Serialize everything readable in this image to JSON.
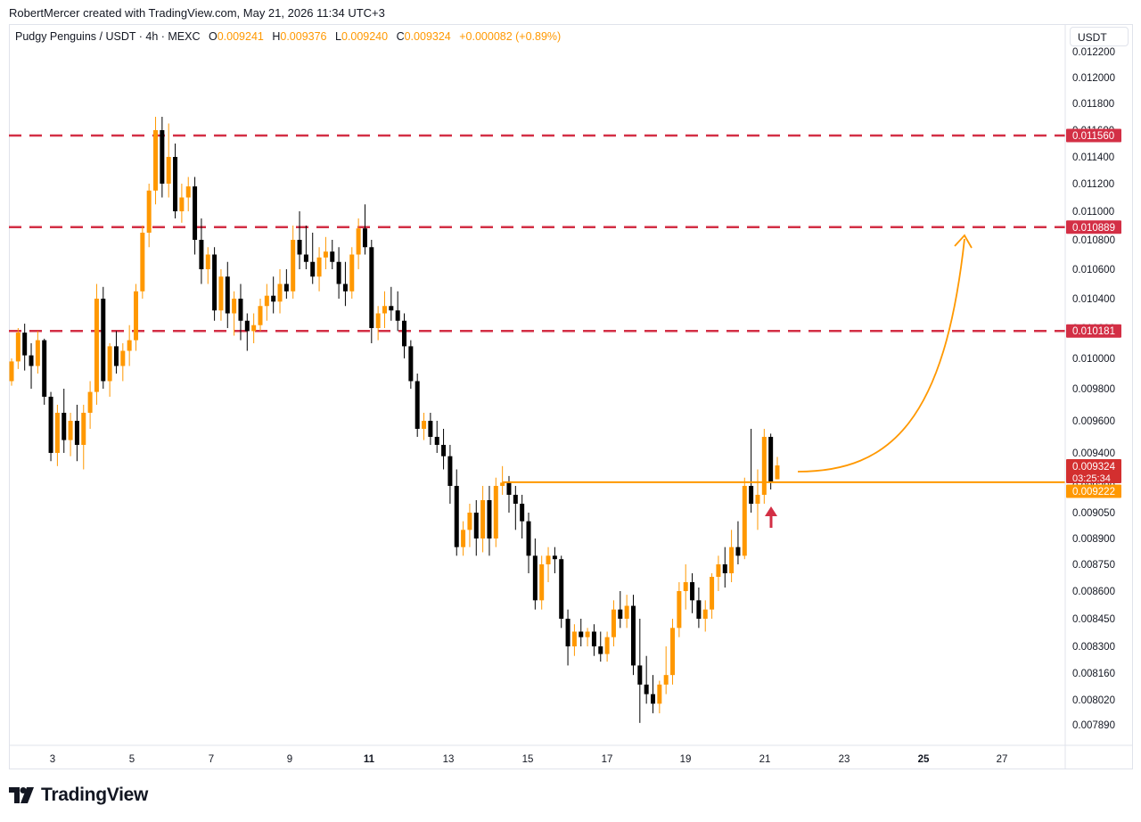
{
  "credit": "RobertMercer created with TradingView.com, May 21, 2026 11:34 UTC+3",
  "legend": {
    "symbol": "Pudgy Penguins / USDT · 4h · MEXC",
    "o_label": "O",
    "o": "0.009241",
    "h_label": "H",
    "h": "0.009376",
    "l_label": "L",
    "l": "0.009240",
    "c_label": "C",
    "c": "0.009324",
    "change": "+0.000082 (+0.89%)"
  },
  "currency": "USDT",
  "brand": "TradingView",
  "colors": {
    "up": "#ff9800",
    "down": "#000000",
    "level": "#d32f45",
    "support": "#ff9800",
    "arrow": "#d32f45"
  },
  "chart_data": {
    "type": "candlestick",
    "y_axis_ticks": [
      "0.012200",
      "0.012000",
      "0.011800",
      "0.011600",
      "0.011400",
      "0.011200",
      "0.011000",
      "0.010800",
      "0.010600",
      "0.010400",
      "0.010200",
      "0.010000",
      "0.009800",
      "0.009600",
      "0.009400",
      "0.009200",
      "0.009050",
      "0.008900",
      "0.008750",
      "0.008600",
      "0.008450",
      "0.008300",
      "0.008160",
      "0.008020",
      "0.007890"
    ],
    "x_axis_ticks": [
      {
        "label": "3",
        "bold": false
      },
      {
        "label": "5",
        "bold": false
      },
      {
        "label": "7",
        "bold": false
      },
      {
        "label": "9",
        "bold": false
      },
      {
        "label": "11",
        "bold": true
      },
      {
        "label": "13",
        "bold": false
      },
      {
        "label": "15",
        "bold": false
      },
      {
        "label": "17",
        "bold": false
      },
      {
        "label": "19",
        "bold": false
      },
      {
        "label": "21",
        "bold": false
      },
      {
        "label": "23",
        "bold": false
      },
      {
        "label": "25",
        "bold": true
      },
      {
        "label": "27",
        "bold": false
      }
    ],
    "resistance_levels": [
      "0.011560",
      "0.010889",
      "0.010181"
    ],
    "support_level": "0.009222",
    "last_price": "0.009324",
    "countdown": "03:25:34",
    "candles": [
      [
        0.00985,
        0.01,
        0.00982,
        0.00998
      ],
      [
        0.00998,
        0.0102,
        0.00993,
        0.01017
      ],
      [
        0.01017,
        0.01023,
        0.00992,
        0.01002
      ],
      [
        0.01002,
        0.0101,
        0.0098,
        0.00995
      ],
      [
        0.00995,
        0.01018,
        0.0099,
        0.01012
      ],
      [
        0.01012,
        0.01013,
        0.0097,
        0.00975
      ],
      [
        0.00975,
        0.00978,
        0.00935,
        0.0094
      ],
      [
        0.0094,
        0.0097,
        0.00932,
        0.00965
      ],
      [
        0.00965,
        0.0098,
        0.0094,
        0.00948
      ],
      [
        0.00948,
        0.00965,
        0.00938,
        0.0096
      ],
      [
        0.0096,
        0.0097,
        0.00935,
        0.00945
      ],
      [
        0.00945,
        0.0097,
        0.0093,
        0.00965
      ],
      [
        0.00965,
        0.00985,
        0.00955,
        0.00978
      ],
      [
        0.00978,
        0.0105,
        0.0097,
        0.0104
      ],
      [
        0.0104,
        0.01048,
        0.0098,
        0.00985
      ],
      [
        0.00985,
        0.0101,
        0.00975,
        0.01008
      ],
      [
        0.01008,
        0.01018,
        0.0099,
        0.00995
      ],
      [
        0.00995,
        0.0101,
        0.00985,
        0.01005
      ],
      [
        0.01005,
        0.01022,
        0.00995,
        0.01012
      ],
      [
        0.01012,
        0.0105,
        0.01005,
        0.01045
      ],
      [
        0.01045,
        0.0109,
        0.0104,
        0.01085
      ],
      [
        0.01085,
        0.0112,
        0.01075,
        0.01115
      ],
      [
        0.01115,
        0.0117,
        0.01105,
        0.0116
      ],
      [
        0.0116,
        0.0117,
        0.0111,
        0.0112
      ],
      [
        0.0112,
        0.01165,
        0.0111,
        0.0114
      ],
      [
        0.0114,
        0.0115,
        0.01095,
        0.011
      ],
      [
        0.011,
        0.0112,
        0.01092,
        0.0111
      ],
      [
        0.0111,
        0.01125,
        0.011,
        0.01118
      ],
      [
        0.01118,
        0.01125,
        0.0107,
        0.0108
      ],
      [
        0.0108,
        0.01095,
        0.0105,
        0.0106
      ],
      [
        0.0106,
        0.01075,
        0.0105,
        0.0107
      ],
      [
        0.0107,
        0.01075,
        0.01025,
        0.01032
      ],
      [
        0.01032,
        0.0106,
        0.01025,
        0.01055
      ],
      [
        0.01055,
        0.01065,
        0.0102,
        0.0103
      ],
      [
        0.0103,
        0.01045,
        0.01015,
        0.0104
      ],
      [
        0.0104,
        0.0105,
        0.01012,
        0.01025
      ],
      [
        0.01025,
        0.0103,
        0.01005,
        0.01018
      ],
      [
        0.01018,
        0.0103,
        0.0101,
        0.01022
      ],
      [
        0.01022,
        0.0104,
        0.01018,
        0.01035
      ],
      [
        0.01035,
        0.0105,
        0.01025,
        0.01042
      ],
      [
        0.01042,
        0.01055,
        0.0103,
        0.01038
      ],
      [
        0.01038,
        0.0106,
        0.0103,
        0.0105
      ],
      [
        0.0105,
        0.0106,
        0.0104,
        0.01045
      ],
      [
        0.01045,
        0.0109,
        0.0104,
        0.0108
      ],
      [
        0.0108,
        0.011,
        0.0106,
        0.0107
      ],
      [
        0.0107,
        0.0109,
        0.0106,
        0.01065
      ],
      [
        0.01065,
        0.01085,
        0.0105,
        0.01055
      ],
      [
        0.01055,
        0.01075,
        0.01045,
        0.01068
      ],
      [
        0.01068,
        0.01082,
        0.0106,
        0.01072
      ],
      [
        0.01072,
        0.0108,
        0.0106,
        0.01065
      ],
      [
        0.01065,
        0.01075,
        0.0104,
        0.0105
      ],
      [
        0.0105,
        0.01065,
        0.01035,
        0.01045
      ],
      [
        0.01045,
        0.01075,
        0.0104,
        0.0107
      ],
      [
        0.0107,
        0.01095,
        0.0106,
        0.01088
      ],
      [
        0.01088,
        0.01105,
        0.0107,
        0.01075
      ],
      [
        0.01075,
        0.0108,
        0.0101,
        0.0102
      ],
      [
        0.0102,
        0.01035,
        0.01012,
        0.0103
      ],
      [
        0.0103,
        0.01045,
        0.0102,
        0.01035
      ],
      [
        0.01035,
        0.01048,
        0.01025,
        0.01032
      ],
      [
        0.01032,
        0.01045,
        0.01018,
        0.01025
      ],
      [
        0.01025,
        0.0103,
        0.01,
        0.01008
      ],
      [
        0.01008,
        0.01012,
        0.0098,
        0.00985
      ],
      [
        0.00985,
        0.0099,
        0.0095,
        0.00955
      ],
      [
        0.00955,
        0.00965,
        0.00948,
        0.0096
      ],
      [
        0.0096,
        0.00965,
        0.00945,
        0.0095
      ],
      [
        0.0095,
        0.0096,
        0.0094,
        0.00945
      ],
      [
        0.00945,
        0.00955,
        0.0093,
        0.00938
      ],
      [
        0.00938,
        0.00945,
        0.0091,
        0.0092
      ],
      [
        0.0092,
        0.0093,
        0.0088,
        0.00885
      ],
      [
        0.00885,
        0.009,
        0.0088,
        0.00895
      ],
      [
        0.00895,
        0.0091,
        0.00885,
        0.00905
      ],
      [
        0.00905,
        0.00912,
        0.0088,
        0.0089
      ],
      [
        0.0089,
        0.0092,
        0.00882,
        0.00912
      ],
      [
        0.00912,
        0.0092,
        0.0088,
        0.0089
      ],
      [
        0.0089,
        0.00925,
        0.00885,
        0.0092
      ],
      [
        0.0092,
        0.00932,
        0.00915,
        0.00922
      ],
      [
        0.00922,
        0.00926,
        0.00905,
        0.00915
      ],
      [
        0.00915,
        0.0092,
        0.00895,
        0.0091
      ],
      [
        0.0091,
        0.00915,
        0.0089,
        0.009
      ],
      [
        0.009,
        0.00905,
        0.0087,
        0.0088
      ],
      [
        0.0088,
        0.0089,
        0.0085,
        0.00855
      ],
      [
        0.00855,
        0.0088,
        0.0085,
        0.00875
      ],
      [
        0.00875,
        0.00885,
        0.00865,
        0.0088
      ],
      [
        0.0088,
        0.00885,
        0.0087,
        0.00878
      ],
      [
        0.00878,
        0.0088,
        0.0084,
        0.00845
      ],
      [
        0.00845,
        0.0085,
        0.0082,
        0.0083
      ],
      [
        0.0083,
        0.00842,
        0.00825,
        0.00838
      ],
      [
        0.00838,
        0.00845,
        0.0083,
        0.00835
      ],
      [
        0.00835,
        0.0084,
        0.0083,
        0.00838
      ],
      [
        0.00838,
        0.00842,
        0.00825,
        0.0083
      ],
      [
        0.0083,
        0.00838,
        0.00822,
        0.00826
      ],
      [
        0.00826,
        0.00838,
        0.00822,
        0.00835
      ],
      [
        0.00835,
        0.00855,
        0.0083,
        0.0085
      ],
      [
        0.0085,
        0.0086,
        0.0084,
        0.00845
      ],
      [
        0.00845,
        0.00858,
        0.0084,
        0.00852
      ],
      [
        0.00852,
        0.00858,
        0.00815,
        0.0082
      ],
      [
        0.0082,
        0.00845,
        0.0079,
        0.0081
      ],
      [
        0.0081,
        0.00825,
        0.008,
        0.00805
      ],
      [
        0.00805,
        0.00815,
        0.00795,
        0.008
      ],
      [
        0.008,
        0.00812,
        0.00795,
        0.0081
      ],
      [
        0.0081,
        0.0083,
        0.00805,
        0.00815
      ],
      [
        0.00815,
        0.00845,
        0.0081,
        0.0084
      ],
      [
        0.0084,
        0.00865,
        0.00835,
        0.0086
      ],
      [
        0.0086,
        0.00875,
        0.0085,
        0.00865
      ],
      [
        0.00865,
        0.0087,
        0.00848,
        0.00855
      ],
      [
        0.00855,
        0.00862,
        0.0084,
        0.00845
      ],
      [
        0.00845,
        0.00855,
        0.00838,
        0.0085
      ],
      [
        0.0085,
        0.0087,
        0.00845,
        0.00868
      ],
      [
        0.00868,
        0.0088,
        0.0086,
        0.00875
      ],
      [
        0.00875,
        0.00885,
        0.00862,
        0.0087
      ],
      [
        0.0087,
        0.00895,
        0.00865,
        0.00885
      ],
      [
        0.00885,
        0.009,
        0.00875,
        0.0088
      ],
      [
        0.0088,
        0.00925,
        0.00878,
        0.0092
      ],
      [
        0.0092,
        0.00955,
        0.00905,
        0.0091
      ],
      [
        0.0091,
        0.0093,
        0.00895,
        0.00915
      ],
      [
        0.00915,
        0.00955,
        0.0091,
        0.0095
      ],
      [
        0.0095,
        0.00952,
        0.00918,
        0.00922
      ],
      [
        0.00924,
        0.009376,
        0.00924,
        0.009324
      ]
    ]
  }
}
